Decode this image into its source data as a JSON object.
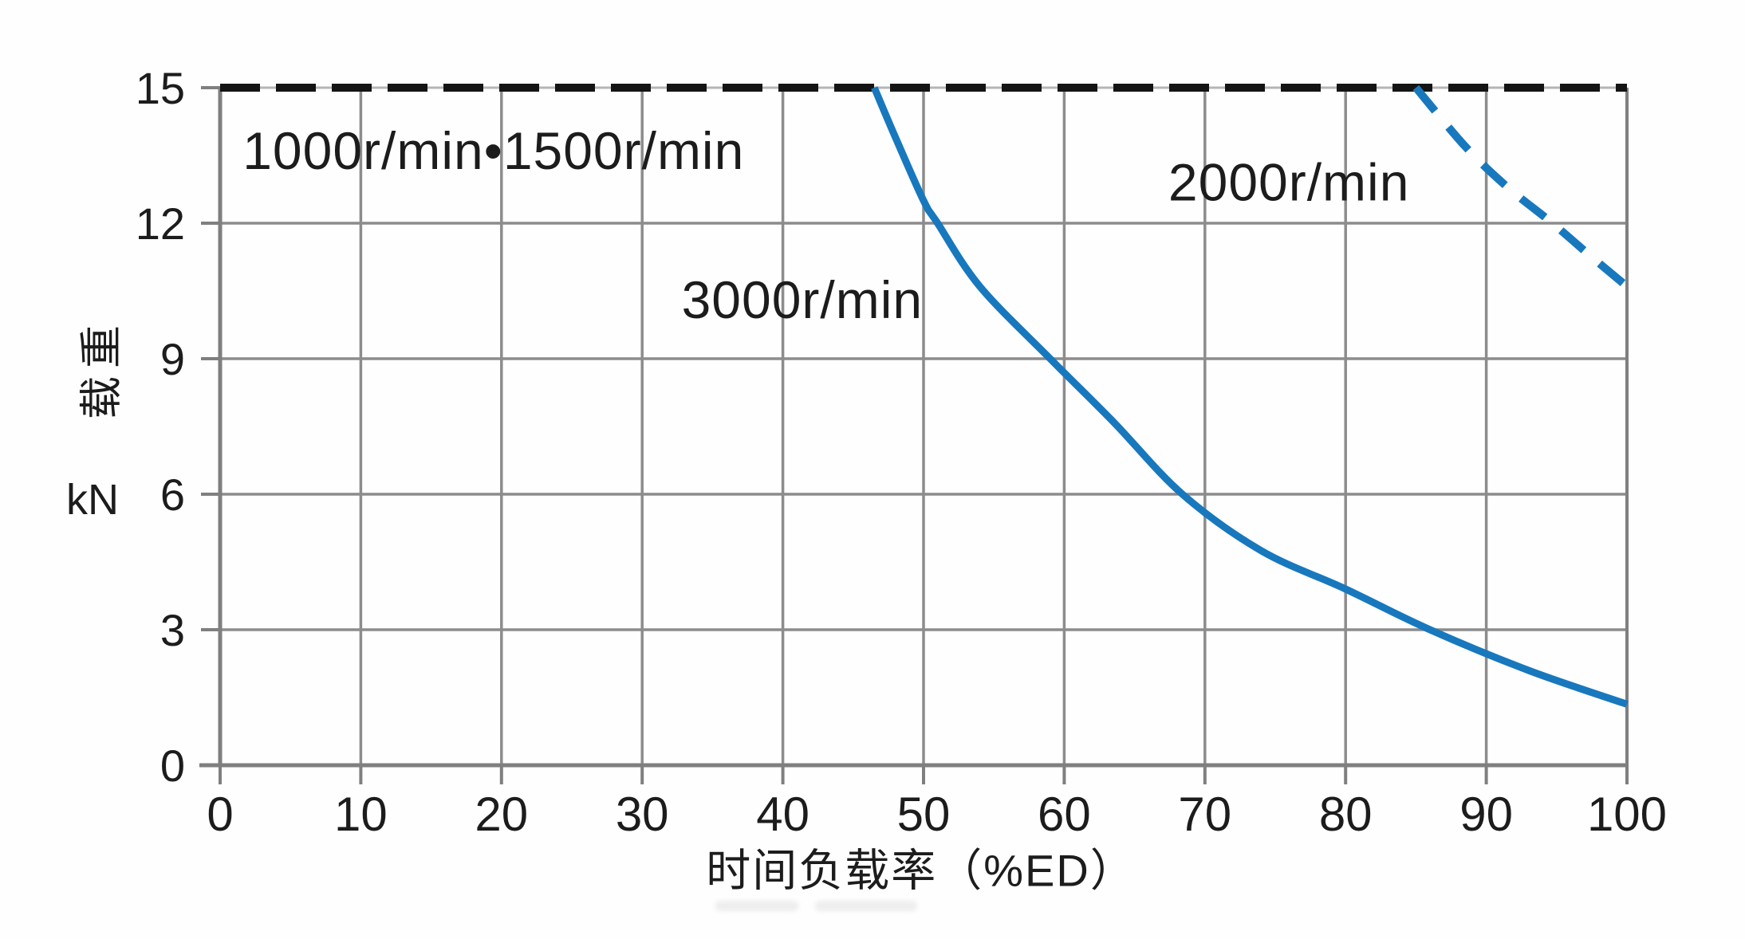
{
  "page": {
    "background": "#ffffff"
  },
  "chart_data": {
    "type": "line",
    "title": "",
    "xlabel": "时间负载率（%ED）",
    "ylabel": "载重",
    "ylabel_unit": "kN",
    "xlim": [
      0,
      100
    ],
    "ylim": [
      0,
      15
    ],
    "x_ticks": [
      0,
      10,
      20,
      30,
      40,
      50,
      60,
      70,
      80,
      90,
      100
    ],
    "y_ticks": [
      0,
      3,
      6,
      9,
      12,
      15
    ],
    "grid": true,
    "legend_position": "inline-labels",
    "grid_color": "#8c8c8c",
    "axis_color": "#7f7f7f",
    "text_color": "#1c1c1c",
    "series": [
      {
        "name": "1000r/min•1500r/min",
        "color": "#141414",
        "style": "dashed",
        "dash": [
          50,
          20
        ],
        "width": 10,
        "smooth": false,
        "points": [
          [
            0,
            15
          ],
          [
            100,
            15
          ]
        ],
        "label": {
          "text": "1000r/min•1500r/min",
          "x": 1.6,
          "y": 13.2
        }
      },
      {
        "name": "2000r/min",
        "color": "#1878bd",
        "style": "dashed",
        "dash": [
          38,
          26
        ],
        "width": 10,
        "smooth": true,
        "points": [
          [
            85,
            15
          ],
          [
            88.5,
            13.7
          ],
          [
            91.5,
            12.8
          ],
          [
            94.7,
            12
          ],
          [
            97.5,
            11.25
          ],
          [
            100,
            10.6
          ]
        ],
        "label": {
          "text": "2000r/min",
          "x": 67.4,
          "y": 12.5
        }
      },
      {
        "name": "3000r/min",
        "color": "#1878bd",
        "style": "solid",
        "width": 9,
        "smooth": true,
        "points": [
          [
            46.5,
            15
          ],
          [
            48,
            13.9
          ],
          [
            50,
            12.5
          ],
          [
            51,
            12
          ],
          [
            54,
            10.6
          ],
          [
            59,
            9
          ],
          [
            63.5,
            7.6
          ],
          [
            68.4,
            6
          ],
          [
            74,
            4.75
          ],
          [
            80,
            3.9
          ],
          [
            86,
            3
          ],
          [
            93,
            2.1
          ],
          [
            100,
            1.35
          ]
        ],
        "label": {
          "text": "3000r/min",
          "x": 32.8,
          "y": 9.9
        }
      }
    ]
  }
}
